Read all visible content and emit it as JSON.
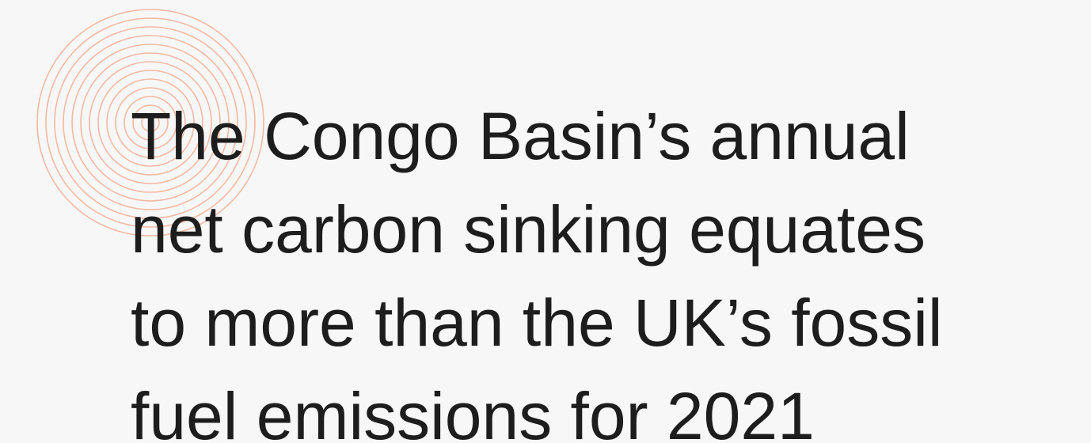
{
  "heading": {
    "lines": [
      "The Congo Basin’s annual",
      "net carbon sinking equates",
      "to more than the UK’s fossil",
      "fuel emissions for 2021"
    ]
  }
}
